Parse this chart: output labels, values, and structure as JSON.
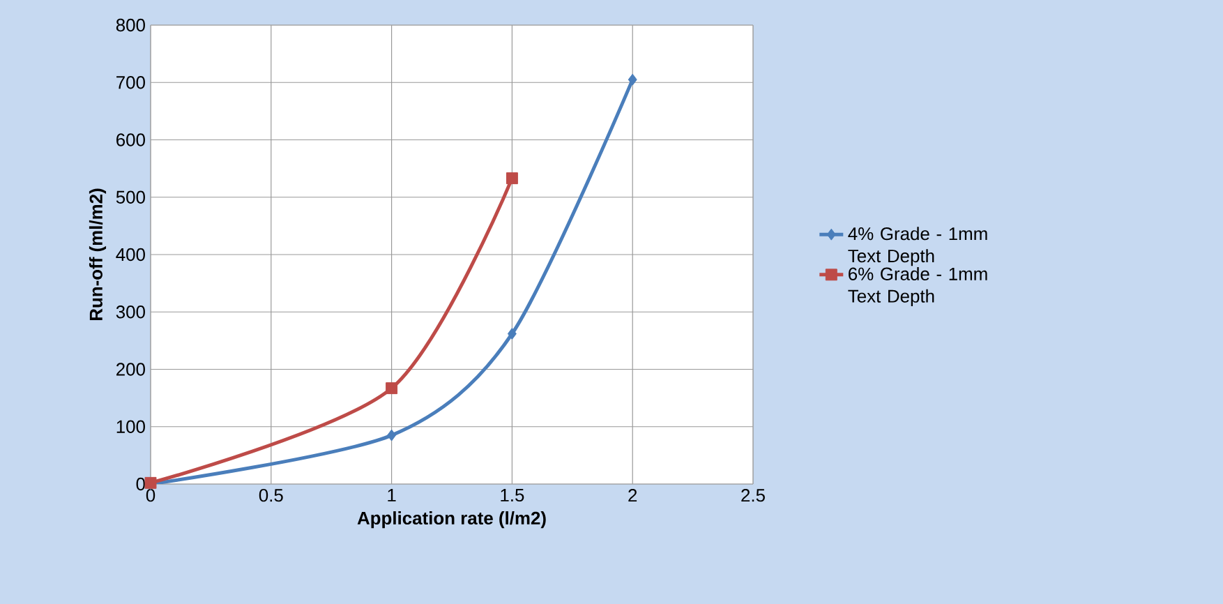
{
  "chart_data": {
    "type": "line",
    "xlabel": "Application rate (l/m2)",
    "ylabel": "Run-off (ml/m2)",
    "xlim": [
      0,
      2.5
    ],
    "xticks": [
      0,
      0.5,
      1,
      1.5,
      2,
      2.5
    ],
    "ylim": [
      0,
      800
    ],
    "yticks": [
      0,
      100,
      200,
      300,
      400,
      500,
      600,
      700,
      800
    ],
    "grid": true,
    "legend": "right",
    "line_style": "solid",
    "series": [
      {
        "name": "4% Grade - 1mm Text Depth",
        "color": "#4a7ebb",
        "marker": "diamond",
        "x": [
          0,
          1,
          1.5,
          2
        ],
        "values": [
          0,
          85,
          262,
          705
        ]
      },
      {
        "name": "6% Grade - 1mm Text Depth",
        "color": "#be4b48",
        "marker": "square",
        "x": [
          0,
          1,
          1.5
        ],
        "values": [
          2,
          167,
          533
        ]
      }
    ]
  }
}
